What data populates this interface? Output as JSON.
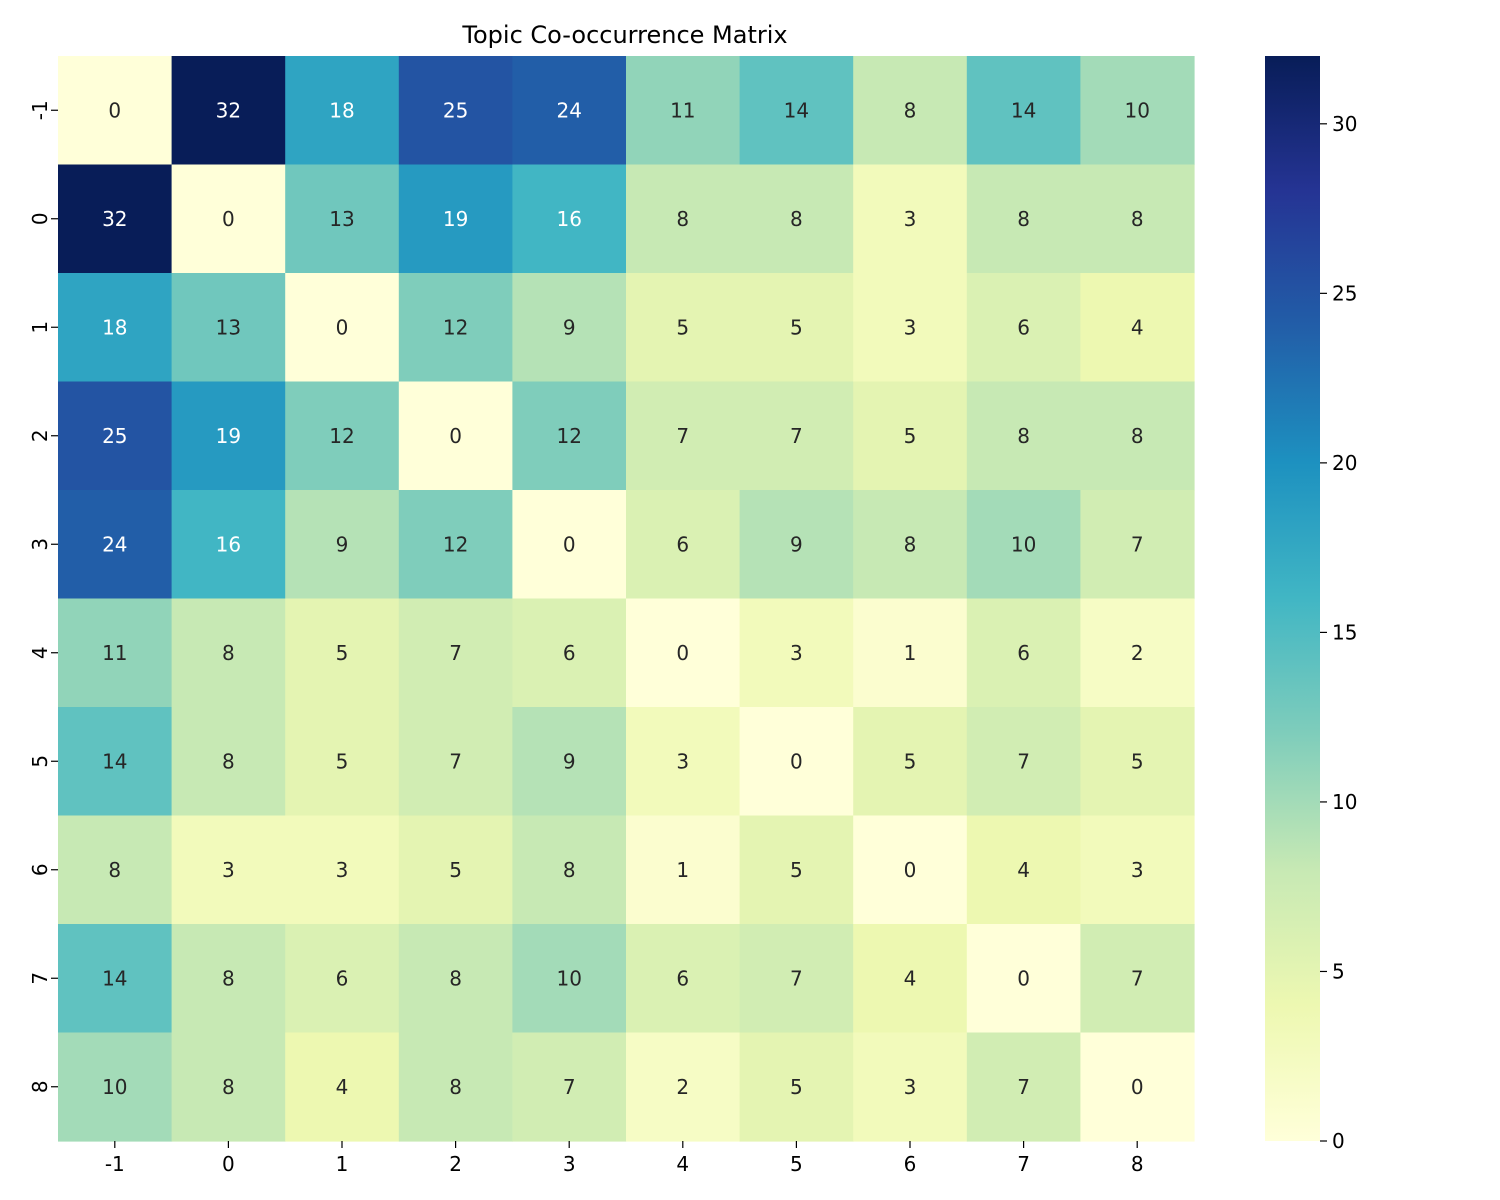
{
  "chart_data": {
    "type": "heatmap",
    "title": "Topic Co-occurrence Matrix",
    "xlabel": "",
    "ylabel": "",
    "x_categories": [
      "-1",
      "0",
      "1",
      "2",
      "3",
      "4",
      "5",
      "6",
      "7",
      "8"
    ],
    "y_categories": [
      "-1",
      "0",
      "1",
      "2",
      "3",
      "4",
      "5",
      "6",
      "7",
      "8"
    ],
    "values": [
      [
        0,
        32,
        18,
        25,
        24,
        11,
        14,
        8,
        14,
        10
      ],
      [
        32,
        0,
        13,
        19,
        16,
        8,
        8,
        3,
        8,
        8
      ],
      [
        18,
        13,
        0,
        12,
        9,
        5,
        5,
        3,
        6,
        4
      ],
      [
        25,
        19,
        12,
        0,
        12,
        7,
        7,
        5,
        8,
        8
      ],
      [
        24,
        16,
        9,
        12,
        0,
        6,
        9,
        8,
        10,
        7
      ],
      [
        11,
        8,
        5,
        7,
        6,
        0,
        3,
        1,
        6,
        2
      ],
      [
        14,
        8,
        5,
        7,
        9,
        3,
        0,
        5,
        7,
        5
      ],
      [
        8,
        3,
        3,
        5,
        8,
        1,
        5,
        0,
        4,
        3
      ],
      [
        14,
        8,
        6,
        8,
        10,
        6,
        7,
        4,
        0,
        7
      ],
      [
        10,
        8,
        4,
        8,
        7,
        2,
        5,
        3,
        7,
        0
      ]
    ],
    "colormap": "YlGnBu",
    "vmin": 0,
    "vmax": 32,
    "annotated": true,
    "colorbar": {
      "ticks": [
        0,
        5,
        10,
        15,
        20,
        25,
        30
      ]
    },
    "colormap_stops": [
      "#ffffd9",
      "#edf8b1",
      "#c7e9b4",
      "#7fcdbb",
      "#41b6c4",
      "#1d91c0",
      "#225ea8",
      "#253494",
      "#081d58"
    ],
    "text_colors": {
      "light": "#ffffff",
      "dark": "#262626"
    }
  }
}
